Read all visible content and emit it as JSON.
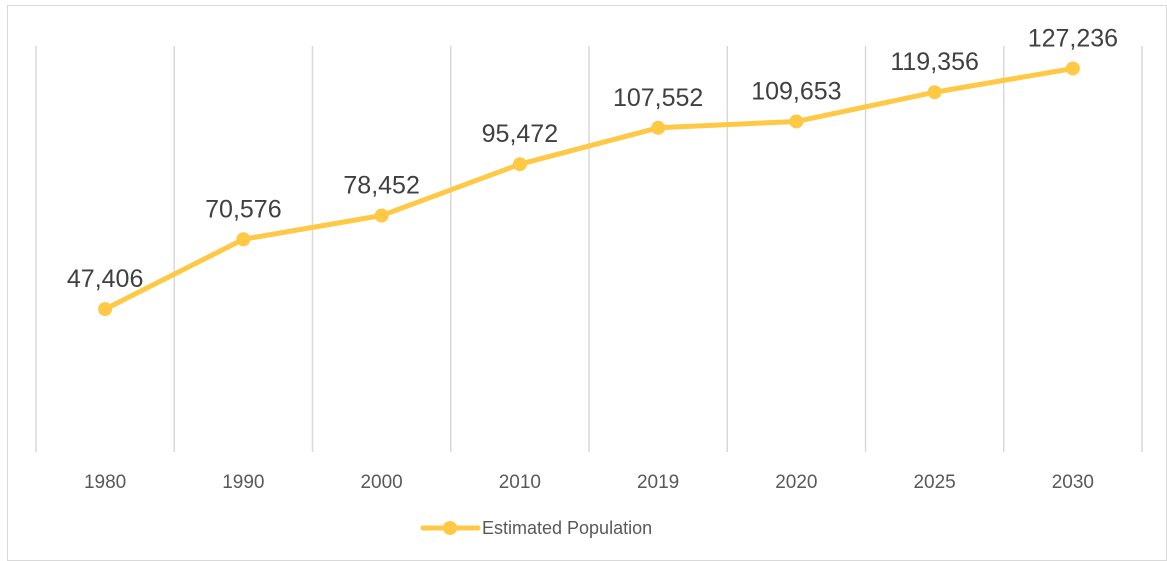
{
  "chart_data": {
    "type": "line",
    "categories": [
      "1980",
      "1990",
      "2000",
      "2010",
      "2019",
      "2020",
      "2025",
      "2030"
    ],
    "series": [
      {
        "name": "Estimated Population",
        "values": [
          47406,
          70576,
          78452,
          95472,
          107552,
          109653,
          119356,
          127236
        ],
        "labels": [
          "47,406",
          "70,576",
          "78,452",
          "95,472",
          "107,552",
          "109,653",
          "119,356",
          "127,236"
        ],
        "color": "#FFC845"
      }
    ],
    "title": "",
    "xlabel": "",
    "ylabel": "",
    "ylim": [
      0,
      140000
    ],
    "grid": "vertical",
    "legend": "bottom"
  }
}
